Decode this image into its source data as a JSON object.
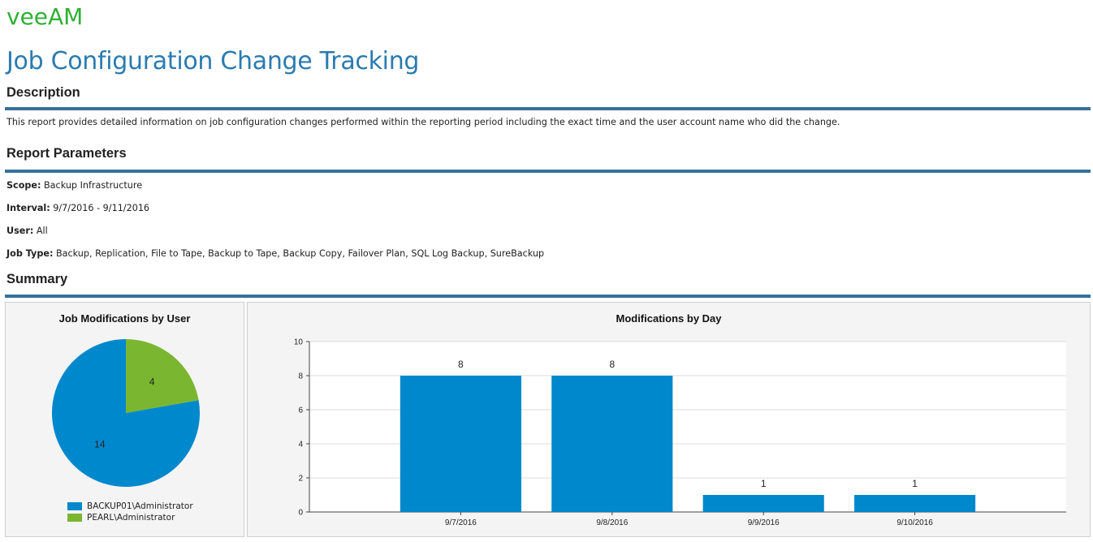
{
  "header": {
    "logo_text": "veeAM",
    "page_title": "Job Configuration Change Tracking"
  },
  "description": {
    "heading": "Description",
    "text": "This report provides detailed information on job configuration changes performed within the reporting period including the exact time and the user account name who did the change."
  },
  "parameters": {
    "heading": "Report Parameters",
    "items": [
      {
        "label": "Scope:",
        "value": " Backup Infrastructure"
      },
      {
        "label": "Interval:",
        "value": " 9/7/2016 - 9/11/2016"
      },
      {
        "label": "User:",
        "value": " All"
      },
      {
        "label": "Job Type:",
        "value": " Backup, Replication, File to Tape, Backup to Tape, Backup Copy, Failover Plan, SQL Log Backup, SureBackup"
      }
    ]
  },
  "summary": {
    "heading": "Summary"
  },
  "colors": {
    "accent": "#2a7bb0",
    "rule": "#35719a",
    "series_blue": "#0088cc",
    "series_green": "#7ab630",
    "logo_green": "#2eb135"
  },
  "chart_data": [
    {
      "type": "pie",
      "title": "Job Modifications by User",
      "slices": [
        {
          "name": "BACKUP01\\Administrator",
          "value": 14,
          "color": "#0088cc"
        },
        {
          "name": "PEARL\\Administrator",
          "value": 4,
          "color": "#7ab630"
        }
      ],
      "legend": "bottom"
    },
    {
      "type": "bar",
      "title": "Modifications by Day",
      "categories": [
        "9/7/2016",
        "9/8/2016",
        "9/9/2016",
        "9/10/2016"
      ],
      "values": [
        8,
        8,
        1,
        1
      ],
      "ylim": [
        0,
        10
      ],
      "yticks": [
        0,
        2,
        4,
        6,
        8,
        10
      ],
      "grid": true,
      "color": "#0088cc"
    }
  ]
}
